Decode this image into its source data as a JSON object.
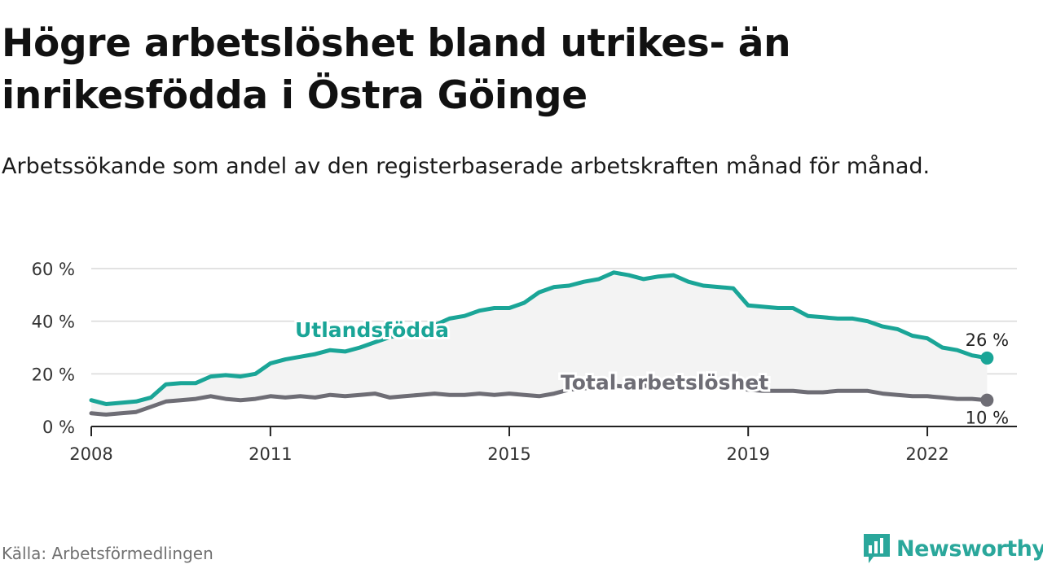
{
  "header": {
    "title": "Högre arbetslöshet bland utrikes- än inrikesfödda i Östra Göinge",
    "subtitle": "Arbetssökande som andel av den registerbaserade arbetskraften månad för månad."
  },
  "footer": {
    "source": "Källa: Arbetsförmedlingen",
    "brand": "Newsworthy"
  },
  "colors": {
    "foreign": "#1aa597",
    "total": "#6e6d75",
    "grid": "#d9d9d9",
    "band": "#f3f3f3",
    "brand": "#2aa79b"
  },
  "chart_data": {
    "type": "line",
    "title": "Högre arbetslöshet bland utrikes- än inrikesfödda i Östra Göinge",
    "xlabel": "",
    "ylabel": "",
    "xlim": [
      2008.0,
      2023.5
    ],
    "ylim": [
      0,
      60
    ],
    "yticks": [
      0,
      20,
      40,
      60
    ],
    "ytick_labels": [
      "0 %",
      "20 %",
      "40 %",
      "60 %"
    ],
    "xticks": [
      2008,
      2011,
      2015,
      2019,
      2022
    ],
    "xtick_labels": [
      "2008",
      "2011",
      "2015",
      "2019",
      "2022"
    ],
    "grid": true,
    "series": [
      {
        "name": "Utlandsfödda",
        "end_label": "26 %",
        "x": [
          2008.0,
          2008.25,
          2008.5,
          2008.75,
          2009.0,
          2009.25,
          2009.5,
          2009.75,
          2010.0,
          2010.25,
          2010.5,
          2010.75,
          2011.0,
          2011.25,
          2011.5,
          2011.75,
          2012.0,
          2012.25,
          2012.5,
          2012.75,
          2013.0,
          2013.25,
          2013.5,
          2013.75,
          2014.0,
          2014.25,
          2014.5,
          2014.75,
          2015.0,
          2015.25,
          2015.5,
          2015.75,
          2016.0,
          2016.25,
          2016.5,
          2016.75,
          2017.0,
          2017.25,
          2017.5,
          2017.75,
          2018.0,
          2018.25,
          2018.5,
          2018.75,
          2019.0,
          2019.25,
          2019.5,
          2019.75,
          2020.0,
          2020.25,
          2020.5,
          2020.75,
          2021.0,
          2021.25,
          2021.5,
          2021.75,
          2022.0,
          2022.25,
          2022.5,
          2022.75,
          2023.0
        ],
        "values": [
          10.0,
          8.5,
          9.0,
          9.5,
          11.0,
          16.0,
          16.5,
          16.5,
          19.0,
          19.5,
          19.0,
          20.0,
          24.0,
          25.5,
          26.5,
          27.5,
          29.0,
          28.5,
          30.0,
          32.0,
          34.0,
          35.0,
          36.0,
          38.5,
          41.0,
          42.0,
          44.0,
          45.0,
          45.0,
          47.0,
          51.0,
          53.0,
          53.5,
          55.0,
          56.0,
          58.5,
          57.5,
          56.0,
          57.0,
          57.5,
          55.0,
          53.5,
          53.0,
          52.5,
          46.0,
          45.5,
          45.0,
          45.0,
          42.0,
          41.5,
          41.0,
          41.0,
          40.0,
          38.0,
          37.0,
          34.5,
          33.5,
          30.0,
          29.0,
          27.0,
          26.0
        ]
      },
      {
        "name": "Total arbetslöshet",
        "end_label": "10 %",
        "x": [
          2008.0,
          2008.25,
          2008.5,
          2008.75,
          2009.0,
          2009.25,
          2009.5,
          2009.75,
          2010.0,
          2010.25,
          2010.5,
          2010.75,
          2011.0,
          2011.25,
          2011.5,
          2011.75,
          2012.0,
          2012.25,
          2012.5,
          2012.75,
          2013.0,
          2013.25,
          2013.5,
          2013.75,
          2014.0,
          2014.25,
          2014.5,
          2014.75,
          2015.0,
          2015.25,
          2015.5,
          2015.75,
          2016.0,
          2016.25,
          2016.5,
          2016.75,
          2017.0,
          2017.25,
          2017.5,
          2017.75,
          2018.0,
          2018.25,
          2018.5,
          2018.75,
          2019.0,
          2019.25,
          2019.5,
          2019.75,
          2020.0,
          2020.25,
          2020.5,
          2020.75,
          2021.0,
          2021.25,
          2021.5,
          2021.75,
          2022.0,
          2022.25,
          2022.5,
          2022.75,
          2023.0
        ],
        "values": [
          5.0,
          4.5,
          5.0,
          5.5,
          7.5,
          9.5,
          10.0,
          10.5,
          11.5,
          10.5,
          10.0,
          10.5,
          11.5,
          11.0,
          11.5,
          11.0,
          12.0,
          11.5,
          12.0,
          12.5,
          11.0,
          11.5,
          12.0,
          12.5,
          12.0,
          12.0,
          12.5,
          12.0,
          12.5,
          12.0,
          11.5,
          12.5,
          14.0,
          14.5,
          15.0,
          15.5,
          15.0,
          15.5,
          15.0,
          15.5,
          15.0,
          15.0,
          14.5,
          14.5,
          14.0,
          13.5,
          13.5,
          13.5,
          13.0,
          13.0,
          13.5,
          13.5,
          13.5,
          12.5,
          12.0,
          11.5,
          11.5,
          11.0,
          10.5,
          10.5,
          10.0
        ]
      }
    ]
  }
}
